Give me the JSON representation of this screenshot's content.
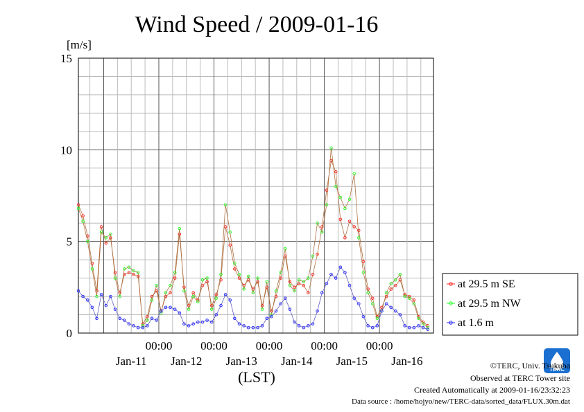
{
  "chart_data": {
    "type": "line",
    "title": "Wind Speed / 2009-01-16",
    "yunit": "[m/s]",
    "xlabel": "(LST)",
    "ylim": [
      0,
      15
    ],
    "yticks": [
      "0",
      "5",
      "10",
      "15"
    ],
    "xlim": [
      "2009-01-10T13:00",
      "2009-01-16T23:30"
    ],
    "time_ticks": [
      "00:00",
      "00:00",
      "00:00",
      "00:00",
      "00:00"
    ],
    "date_labels": [
      "Jan-11",
      "Jan-12",
      "Jan-13",
      "Jan-14",
      "Jan-15",
      "Jan-16"
    ],
    "grid": true,
    "legend_position": "right",
    "series": [
      {
        "name": "at 29.5 m SE",
        "color": "#ff2020",
        "points": [
          [
            "2009-01-10T13:00",
            7.0
          ],
          [
            "2009-01-10T15:00",
            6.4
          ],
          [
            "2009-01-10T17:00",
            5.3
          ],
          [
            "2009-01-10T19:00",
            3.8
          ],
          [
            "2009-01-10T21:00",
            2.3
          ],
          [
            "2009-01-10T23:00",
            5.8
          ],
          [
            "2009-01-11T01:00",
            4.9
          ],
          [
            "2009-01-11T03:00",
            5.2
          ],
          [
            "2009-01-11T05:00",
            3.3
          ],
          [
            "2009-01-11T07:00",
            2.2
          ],
          [
            "2009-01-11T09:00",
            3.2
          ],
          [
            "2009-01-11T11:00",
            3.3
          ],
          [
            "2009-01-11T13:00",
            3.2
          ],
          [
            "2009-01-11T15:00",
            3.1
          ],
          [
            "2009-01-11T17:00",
            0.5
          ],
          [
            "2009-01-11T19:00",
            0.9
          ],
          [
            "2009-01-11T21:00",
            2.0
          ],
          [
            "2009-01-11T23:00",
            2.3
          ],
          [
            "2009-01-12T01:00",
            1.2
          ],
          [
            "2009-01-12T03:00",
            2.0
          ],
          [
            "2009-01-12T05:00",
            2.2
          ],
          [
            "2009-01-12T07:00",
            3.0
          ],
          [
            "2009-01-12T09:00",
            5.4
          ],
          [
            "2009-01-12T11:00",
            2.5
          ],
          [
            "2009-01-12T13:00",
            1.5
          ],
          [
            "2009-01-12T15:00",
            2.2
          ],
          [
            "2009-01-12T17:00",
            1.8
          ],
          [
            "2009-01-12T19:00",
            2.6
          ],
          [
            "2009-01-12T21:00",
            2.8
          ],
          [
            "2009-01-12T23:00",
            1.5
          ],
          [
            "2009-01-13T01:00",
            2.1
          ],
          [
            "2009-01-13T03:00",
            2.9
          ],
          [
            "2009-01-13T05:00",
            5.8
          ],
          [
            "2009-01-13T07:00",
            4.8
          ],
          [
            "2009-01-13T09:00",
            3.5
          ],
          [
            "2009-01-13T11:00",
            3.0
          ],
          [
            "2009-01-13T13:00",
            2.6
          ],
          [
            "2009-01-13T15:00",
            2.9
          ],
          [
            "2009-01-13T17:00",
            2.4
          ],
          [
            "2009-01-13T19:00",
            2.8
          ],
          [
            "2009-01-13T21:00",
            1.5
          ],
          [
            "2009-01-13T23:00",
            2.5
          ],
          [
            "2009-01-14T01:00",
            1.2
          ],
          [
            "2009-01-14T03:00",
            2.0
          ],
          [
            "2009-01-14T05:00",
            3.0
          ],
          [
            "2009-01-14T07:00",
            4.2
          ],
          [
            "2009-01-14T09:00",
            2.8
          ],
          [
            "2009-01-14T11:00",
            2.5
          ],
          [
            "2009-01-14T13:00",
            2.7
          ],
          [
            "2009-01-14T15:00",
            2.6
          ],
          [
            "2009-01-14T17:00",
            2.2
          ],
          [
            "2009-01-14T19:00",
            3.2
          ],
          [
            "2009-01-14T21:00",
            4.3
          ],
          [
            "2009-01-14T23:00",
            5.8
          ],
          [
            "2009-01-15T01:00",
            7.8
          ],
          [
            "2009-01-15T03:00",
            9.4
          ],
          [
            "2009-01-15T05:00",
            8.8
          ],
          [
            "2009-01-15T07:00",
            6.2
          ],
          [
            "2009-01-15T09:00",
            5.2
          ],
          [
            "2009-01-15T11:00",
            6.1
          ],
          [
            "2009-01-15T13:00",
            5.8
          ],
          [
            "2009-01-15T15:00",
            5.6
          ],
          [
            "2009-01-15T17:00",
            3.9
          ],
          [
            "2009-01-15T19:00",
            2.4
          ],
          [
            "2009-01-15T21:00",
            1.9
          ],
          [
            "2009-01-15T23:00",
            0.9
          ],
          [
            "2009-01-16T01:00",
            1.4
          ],
          [
            "2009-01-16T03:00",
            2.0
          ],
          [
            "2009-01-16T05:00",
            2.4
          ],
          [
            "2009-01-16T07:00",
            2.6
          ],
          [
            "2009-01-16T09:00",
            2.9
          ],
          [
            "2009-01-16T11:00",
            2.1
          ],
          [
            "2009-01-16T13:00",
            2.0
          ],
          [
            "2009-01-16T15:00",
            1.8
          ],
          [
            "2009-01-16T17:00",
            0.9
          ],
          [
            "2009-01-16T19:00",
            0.6
          ],
          [
            "2009-01-16T21:00",
            0.4
          ]
        ]
      },
      {
        "name": "at 29.5 m NW",
        "color": "#20ff20",
        "points": [
          [
            "2009-01-10T13:00",
            6.8
          ],
          [
            "2009-01-10T15:00",
            6.1
          ],
          [
            "2009-01-10T17:00",
            5.0
          ],
          [
            "2009-01-10T19:00",
            3.5
          ],
          [
            "2009-01-10T21:00",
            2.0
          ],
          [
            "2009-01-10T23:00",
            5.5
          ],
          [
            "2009-01-11T01:00",
            5.2
          ],
          [
            "2009-01-11T03:00",
            5.4
          ],
          [
            "2009-01-11T05:00",
            3.0
          ],
          [
            "2009-01-11T07:00",
            2.0
          ],
          [
            "2009-01-11T09:00",
            3.5
          ],
          [
            "2009-01-11T11:00",
            3.6
          ],
          [
            "2009-01-11T13:00",
            3.4
          ],
          [
            "2009-01-11T15:00",
            3.3
          ],
          [
            "2009-01-11T17:00",
            0.4
          ],
          [
            "2009-01-11T19:00",
            0.7
          ],
          [
            "2009-01-11T21:00",
            1.8
          ],
          [
            "2009-01-11T23:00",
            2.6
          ],
          [
            "2009-01-12T01:00",
            1.1
          ],
          [
            "2009-01-12T03:00",
            2.2
          ],
          [
            "2009-01-12T05:00",
            2.6
          ],
          [
            "2009-01-12T07:00",
            3.3
          ],
          [
            "2009-01-12T09:00",
            5.7
          ],
          [
            "2009-01-12T11:00",
            2.3
          ],
          [
            "2009-01-12T13:00",
            1.3
          ],
          [
            "2009-01-12T15:00",
            2.0
          ],
          [
            "2009-01-12T17:00",
            1.7
          ],
          [
            "2009-01-12T19:00",
            2.9
          ],
          [
            "2009-01-12T21:00",
            3.0
          ],
          [
            "2009-01-12T23:00",
            1.3
          ],
          [
            "2009-01-13T01:00",
            1.9
          ],
          [
            "2009-01-13T03:00",
            3.2
          ],
          [
            "2009-01-13T05:00",
            7.0
          ],
          [
            "2009-01-13T07:00",
            5.5
          ],
          [
            "2009-01-13T09:00",
            3.8
          ],
          [
            "2009-01-13T11:00",
            3.2
          ],
          [
            "2009-01-13T13:00",
            2.4
          ],
          [
            "2009-01-13T15:00",
            3.1
          ],
          [
            "2009-01-13T17:00",
            2.2
          ],
          [
            "2009-01-13T19:00",
            3.0
          ],
          [
            "2009-01-13T21:00",
            1.3
          ],
          [
            "2009-01-13T23:00",
            2.8
          ],
          [
            "2009-01-14T01:00",
            1.0
          ],
          [
            "2009-01-14T03:00",
            2.3
          ],
          [
            "2009-01-14T05:00",
            3.3
          ],
          [
            "2009-01-14T07:00",
            4.6
          ],
          [
            "2009-01-14T09:00",
            2.6
          ],
          [
            "2009-01-14T11:00",
            2.3
          ],
          [
            "2009-01-14T13:00",
            2.9
          ],
          [
            "2009-01-14T15:00",
            2.8
          ],
          [
            "2009-01-14T17:00",
            3.0
          ],
          [
            "2009-01-14T19:00",
            4.2
          ],
          [
            "2009-01-14T21:00",
            6.0
          ],
          [
            "2009-01-14T23:00",
            5.5
          ],
          [
            "2009-01-15T01:00",
            7.0
          ],
          [
            "2009-01-15T03:00",
            10.1
          ],
          [
            "2009-01-15T05:00",
            8.0
          ],
          [
            "2009-01-15T07:00",
            7.4
          ],
          [
            "2009-01-15T09:00",
            6.8
          ],
          [
            "2009-01-15T11:00",
            7.3
          ],
          [
            "2009-01-15T13:00",
            8.7
          ],
          [
            "2009-01-15T15:00",
            5.2
          ],
          [
            "2009-01-15T17:00",
            3.3
          ],
          [
            "2009-01-15T19:00",
            2.2
          ],
          [
            "2009-01-15T21:00",
            1.6
          ],
          [
            "2009-01-15T23:00",
            0.8
          ],
          [
            "2009-01-16T01:00",
            1.2
          ],
          [
            "2009-01-16T03:00",
            2.2
          ],
          [
            "2009-01-16T05:00",
            2.7
          ],
          [
            "2009-01-16T07:00",
            2.9
          ],
          [
            "2009-01-16T09:00",
            3.2
          ],
          [
            "2009-01-16T11:00",
            2.0
          ],
          [
            "2009-01-16T13:00",
            1.9
          ],
          [
            "2009-01-16T15:00",
            1.6
          ],
          [
            "2009-01-16T17:00",
            0.8
          ],
          [
            "2009-01-16T19:00",
            0.5
          ],
          [
            "2009-01-16T21:00",
            0.3
          ]
        ]
      },
      {
        "name": "at 1.6 m",
        "color": "#2020ff",
        "points": [
          [
            "2009-01-10T13:00",
            2.3
          ],
          [
            "2009-01-10T15:00",
            2.0
          ],
          [
            "2009-01-10T17:00",
            1.8
          ],
          [
            "2009-01-10T19:00",
            1.4
          ],
          [
            "2009-01-10T21:00",
            0.8
          ],
          [
            "2009-01-10T23:00",
            2.1
          ],
          [
            "2009-01-11T01:00",
            1.5
          ],
          [
            "2009-01-11T03:00",
            2.0
          ],
          [
            "2009-01-11T05:00",
            1.3
          ],
          [
            "2009-01-11T07:00",
            0.8
          ],
          [
            "2009-01-11T09:00",
            0.7
          ],
          [
            "2009-01-11T11:00",
            0.5
          ],
          [
            "2009-01-11T13:00",
            0.4
          ],
          [
            "2009-01-11T15:00",
            0.3
          ],
          [
            "2009-01-11T17:00",
            0.3
          ],
          [
            "2009-01-11T19:00",
            0.4
          ],
          [
            "2009-01-11T21:00",
            0.8
          ],
          [
            "2009-01-11T23:00",
            0.7
          ],
          [
            "2009-01-12T01:00",
            1.2
          ],
          [
            "2009-01-12T03:00",
            1.4
          ],
          [
            "2009-01-12T05:00",
            1.4
          ],
          [
            "2009-01-12T07:00",
            1.3
          ],
          [
            "2009-01-12T09:00",
            1.1
          ],
          [
            "2009-01-12T11:00",
            0.5
          ],
          [
            "2009-01-12T13:00",
            0.4
          ],
          [
            "2009-01-12T15:00",
            0.5
          ],
          [
            "2009-01-12T17:00",
            0.6
          ],
          [
            "2009-01-12T19:00",
            0.6
          ],
          [
            "2009-01-12T21:00",
            0.7
          ],
          [
            "2009-01-12T23:00",
            0.6
          ],
          [
            "2009-01-13T01:00",
            1.0
          ],
          [
            "2009-01-13T03:00",
            1.5
          ],
          [
            "2009-01-13T05:00",
            2.1
          ],
          [
            "2009-01-13T07:00",
            1.8
          ],
          [
            "2009-01-13T09:00",
            0.8
          ],
          [
            "2009-01-13T11:00",
            0.5
          ],
          [
            "2009-01-13T13:00",
            0.4
          ],
          [
            "2009-01-13T15:00",
            0.3
          ],
          [
            "2009-01-13T17:00",
            0.3
          ],
          [
            "2009-01-13T19:00",
            0.3
          ],
          [
            "2009-01-13T21:00",
            0.4
          ],
          [
            "2009-01-13T23:00",
            0.8
          ],
          [
            "2009-01-14T01:00",
            0.9
          ],
          [
            "2009-01-14T03:00",
            1.2
          ],
          [
            "2009-01-14T05:00",
            1.6
          ],
          [
            "2009-01-14T07:00",
            1.9
          ],
          [
            "2009-01-14T09:00",
            1.3
          ],
          [
            "2009-01-14T11:00",
            0.6
          ],
          [
            "2009-01-14T13:00",
            0.4
          ],
          [
            "2009-01-14T15:00",
            0.3
          ],
          [
            "2009-01-14T17:00",
            0.4
          ],
          [
            "2009-01-14T19:00",
            0.5
          ],
          [
            "2009-01-14T21:00",
            1.2
          ],
          [
            "2009-01-14T23:00",
            2.2
          ],
          [
            "2009-01-15T01:00",
            2.7
          ],
          [
            "2009-01-15T03:00",
            3.2
          ],
          [
            "2009-01-15T05:00",
            3.0
          ],
          [
            "2009-01-15T07:00",
            3.6
          ],
          [
            "2009-01-15T09:00",
            3.3
          ],
          [
            "2009-01-15T11:00",
            2.6
          ],
          [
            "2009-01-15T13:00",
            1.9
          ],
          [
            "2009-01-15T15:00",
            1.6
          ],
          [
            "2009-01-15T17:00",
            0.9
          ],
          [
            "2009-01-15T19:00",
            0.4
          ],
          [
            "2009-01-15T21:00",
            0.3
          ],
          [
            "2009-01-15T23:00",
            0.4
          ],
          [
            "2009-01-16T01:00",
            1.2
          ],
          [
            "2009-01-16T03:00",
            1.6
          ],
          [
            "2009-01-16T05:00",
            1.4
          ],
          [
            "2009-01-16T07:00",
            1.2
          ],
          [
            "2009-01-16T09:00",
            1.0
          ],
          [
            "2009-01-16T11:00",
            0.4
          ],
          [
            "2009-01-16T13:00",
            0.3
          ],
          [
            "2009-01-16T15:00",
            0.3
          ],
          [
            "2009-01-16T17:00",
            0.4
          ],
          [
            "2009-01-16T19:00",
            0.3
          ],
          [
            "2009-01-16T21:00",
            0.2
          ]
        ]
      }
    ]
  },
  "footer": {
    "copyright": "©TERC, Univ. Tsukuba",
    "observed": "Observed at TERC Tower site",
    "created": "Created Automatically at 2009-01-16/23:32:23",
    "source": "Data source : /home/hojyo/new/TERC-data/sorted_data/FLUX.30m.dat"
  },
  "logo": {
    "text": "TERC",
    "color": "#1a6fd0"
  }
}
